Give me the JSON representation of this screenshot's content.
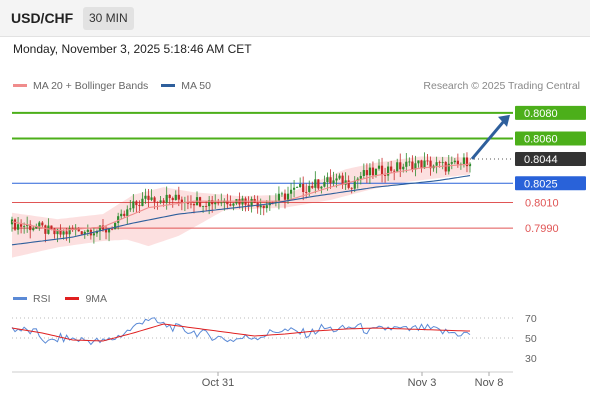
{
  "header": {
    "pair": "USD/CHF",
    "timeframe": "30 MIN"
  },
  "datetime": "Monday, November 3, 2025 5:18:46 AM CET",
  "legend": [
    {
      "label": "MA 20 + Bollinger Bands",
      "color": "#f08c8c"
    },
    {
      "label": "MA 50",
      "color": "#2e5f9c"
    }
  ],
  "credit": "Research © 2025 Trading Central",
  "rsi_legend": [
    {
      "label": "RSI",
      "color": "#5b8ad6"
    },
    {
      "label": "9MA",
      "color": "#e02020"
    }
  ],
  "colors": {
    "resistance": "#4caf1a",
    "support_blue": "#2962d9",
    "support_red": "#e05555",
    "current": "#333333",
    "arrow": "#2e5f9c",
    "candle_up": "#2e8b2e",
    "candle_down": "#c62828",
    "band_fill": "#fbd6d6"
  },
  "chart_data": [
    {
      "type": "candlestick",
      "title": "USD/CHF 30 MIN",
      "y_range": [
        0.7955,
        0.809
      ],
      "x_labels": [
        "Oct 31",
        "Nov 3",
        "Nov 8"
      ],
      "levels": [
        {
          "label": "0.8080",
          "value": 0.808,
          "kind": "resistance"
        },
        {
          "label": "0.8060",
          "value": 0.806,
          "kind": "resistance"
        },
        {
          "label": "0.8044",
          "value": 0.8044,
          "kind": "current"
        },
        {
          "label": "0.8025",
          "value": 0.8025,
          "kind": "support_blue"
        },
        {
          "label": "0.8010",
          "value": 0.801,
          "kind": "support_red"
        },
        {
          "label": "0.7990",
          "value": 0.799,
          "kind": "support_red"
        }
      ],
      "series_anchors": {
        "close": [
          [
            0,
            0.7993
          ],
          [
            8,
            0.7991
          ],
          [
            15,
            0.7985
          ],
          [
            20,
            0.7988
          ],
          [
            27,
            0.7989
          ],
          [
            30,
            0.7987
          ],
          [
            35,
            0.7995
          ],
          [
            40,
            0.8007
          ],
          [
            45,
            0.8014
          ],
          [
            52,
            0.8013
          ],
          [
            58,
            0.8012
          ],
          [
            63,
            0.8011
          ],
          [
            68,
            0.8011
          ],
          [
            73,
            0.8012
          ],
          [
            78,
            0.8011
          ],
          [
            84,
            0.8009
          ],
          [
            88,
            0.8013
          ],
          [
            93,
            0.8019
          ],
          [
            98,
            0.8023
          ],
          [
            103,
            0.8026
          ],
          [
            108,
            0.8027
          ],
          [
            112,
            0.8025
          ],
          [
            115,
            0.8031
          ],
          [
            120,
            0.8034
          ],
          [
            124,
            0.8036
          ],
          [
            128,
            0.8038
          ],
          [
            132,
            0.804
          ],
          [
            136,
            0.804
          ],
          [
            140,
            0.8039
          ],
          [
            143,
            0.8038
          ],
          [
            147,
            0.8039
          ],
          [
            151,
            0.8044
          ]
        ],
        "ma20": [
          [
            0,
            0.7995
          ],
          [
            15,
            0.7988
          ],
          [
            30,
            0.7991
          ],
          [
            45,
            0.8006
          ],
          [
            60,
            0.8011
          ],
          [
            75,
            0.8011
          ],
          [
            90,
            0.8011
          ],
          [
            105,
            0.8022
          ],
          [
            120,
            0.8031
          ],
          [
            135,
            0.8037
          ],
          [
            151,
            0.804
          ]
        ],
        "bb_upper": [
          [
            0,
            0.8002
          ],
          [
            15,
            0.7997
          ],
          [
            30,
            0.8001
          ],
          [
            40,
            0.8016
          ],
          [
            50,
            0.8022
          ],
          [
            60,
            0.8018
          ],
          [
            75,
            0.8015
          ],
          [
            90,
            0.8016
          ],
          [
            100,
            0.8026
          ],
          [
            110,
            0.8036
          ],
          [
            120,
            0.8041
          ],
          [
            135,
            0.8046
          ],
          [
            151,
            0.8045
          ]
        ],
        "bb_lower": [
          [
            0,
            0.7967
          ],
          [
            15,
            0.7975
          ],
          [
            30,
            0.798
          ],
          [
            38,
            0.7981
          ],
          [
            45,
            0.7976
          ],
          [
            55,
            0.7984
          ],
          [
            70,
            0.8004
          ],
          [
            90,
            0.8006
          ],
          [
            105,
            0.8012
          ],
          [
            118,
            0.802
          ],
          [
            130,
            0.8026
          ],
          [
            151,
            0.8032
          ]
        ],
        "ma50": [
          [
            0,
            0.7977
          ],
          [
            20,
            0.7983
          ],
          [
            40,
            0.7994
          ],
          [
            55,
            0.8001
          ],
          [
            70,
            0.8005
          ],
          [
            85,
            0.8009
          ],
          [
            100,
            0.8015
          ],
          [
            120,
            0.8022
          ],
          [
            140,
            0.8027
          ],
          [
            151,
            0.8031
          ]
        ]
      },
      "forecast_arrow": {
        "from": 0.8044,
        "to": 0.808
      }
    },
    {
      "type": "line",
      "title": "RSI",
      "y_range": [
        20,
        80
      ],
      "y_ticks": [
        "70",
        "50",
        "30"
      ],
      "tick_values": [
        70,
        50,
        30
      ],
      "series_anchors": {
        "rsi": [
          [
            0,
            60
          ],
          [
            8,
            55
          ],
          [
            12,
            45
          ],
          [
            16,
            50
          ],
          [
            24,
            48
          ],
          [
            30,
            46
          ],
          [
            34,
            50
          ],
          [
            40,
            60
          ],
          [
            44,
            70
          ],
          [
            48,
            65
          ],
          [
            54,
            60
          ],
          [
            60,
            56
          ],
          [
            66,
            52
          ],
          [
            72,
            48
          ],
          [
            76,
            50
          ],
          [
            82,
            52
          ],
          [
            88,
            58
          ],
          [
            94,
            56
          ],
          [
            98,
            54
          ],
          [
            102,
            60
          ],
          [
            108,
            58
          ],
          [
            114,
            62
          ],
          [
            118,
            56
          ],
          [
            124,
            60
          ],
          [
            130,
            58
          ],
          [
            136,
            60
          ],
          [
            142,
            56
          ],
          [
            150,
            54
          ]
        ],
        "ma9": [
          [
            0,
            60
          ],
          [
            10,
            55
          ],
          [
            20,
            48
          ],
          [
            30,
            47
          ],
          [
            40,
            55
          ],
          [
            50,
            64
          ],
          [
            60,
            60
          ],
          [
            70,
            56
          ],
          [
            80,
            52
          ],
          [
            90,
            54
          ],
          [
            100,
            57
          ],
          [
            110,
            59
          ],
          [
            120,
            60
          ],
          [
            130,
            59
          ],
          [
            140,
            58
          ],
          [
            150,
            57
          ]
        ]
      }
    }
  ]
}
